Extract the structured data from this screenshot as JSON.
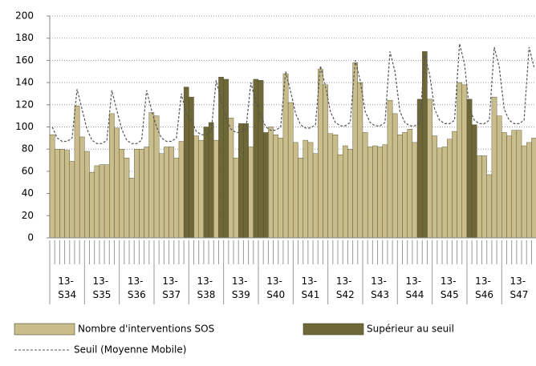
{
  "chart_data": {
    "type": "bar",
    "categories": [
      null,
      null,
      null,
      "13-\nS34",
      null,
      null,
      null,
      null,
      null,
      null,
      "13-\nS35",
      null,
      null,
      null,
      null,
      null,
      null,
      "13-\nS36",
      null,
      null,
      null,
      null,
      null,
      null,
      "13-\nS37",
      null,
      null,
      null,
      null,
      null,
      null,
      "13-\nS38",
      null,
      null,
      null,
      null,
      null,
      null,
      "13-\nS39",
      null,
      null,
      null,
      null,
      null,
      null,
      "13-\nS40",
      null,
      null,
      null,
      null,
      null,
      null,
      "13-\nS41",
      null,
      null,
      null,
      null,
      null,
      null,
      "13-\nS42",
      null,
      null,
      null,
      null,
      null,
      null,
      "13-\nS43",
      null,
      null,
      null,
      null,
      null,
      null,
      "13-\nS44",
      null,
      null,
      null,
      null,
      null,
      null,
      "13-\nS45",
      null,
      null,
      null,
      null,
      null,
      null,
      "13-\nS46",
      null,
      null,
      null,
      null,
      null,
      null,
      "13-\nS47",
      null,
      null,
      null
    ],
    "series": [
      {
        "name": "Nombre d'interventions SOS",
        "type": "bar",
        "color": "#c9bd8c",
        "values": [
          93,
          80,
          80,
          79,
          69,
          119,
          91,
          78,
          59,
          65,
          66,
          66,
          112,
          99,
          80,
          72,
          54,
          80,
          80,
          82,
          113,
          110,
          76,
          82,
          82,
          72,
          87,
          null,
          null,
          92,
          88,
          null,
          null,
          88,
          null,
          null,
          108,
          72,
          null,
          null,
          82,
          null,
          null,
          null,
          100,
          93,
          90,
          148,
          122,
          86,
          72,
          88,
          86,
          76,
          152,
          138,
          94,
          93,
          75,
          83,
          80,
          158,
          140,
          95,
          82,
          83,
          82,
          84,
          124,
          112,
          93,
          95,
          98,
          86,
          null,
          null,
          125,
          92,
          81,
          82,
          89,
          96,
          140,
          138,
          null,
          null,
          74,
          74,
          57,
          127,
          110,
          95,
          92,
          97,
          97,
          83,
          86,
          90
        ]
      },
      {
        "name": "Supérieur au seuil",
        "type": "bar",
        "color": "#6e6737",
        "values": [
          null,
          null,
          null,
          null,
          null,
          null,
          null,
          null,
          null,
          null,
          null,
          null,
          null,
          null,
          null,
          null,
          null,
          null,
          null,
          null,
          null,
          null,
          null,
          null,
          null,
          null,
          null,
          136,
          127,
          null,
          null,
          100,
          104,
          null,
          145,
          143,
          null,
          null,
          103,
          103,
          null,
          143,
          142,
          95,
          null,
          null,
          null,
          null,
          null,
          null,
          null,
          null,
          null,
          null,
          null,
          null,
          null,
          null,
          null,
          null,
          null,
          null,
          null,
          null,
          null,
          null,
          null,
          null,
          null,
          null,
          null,
          null,
          null,
          null,
          125,
          168,
          null,
          null,
          null,
          null,
          null,
          null,
          null,
          null,
          125,
          102,
          null,
          null,
          null,
          null,
          null,
          null,
          null,
          null,
          null,
          null,
          null,
          null
        ]
      },
      {
        "name": "Seuil (Moyenne Mobile)",
        "type": "line",
        "color": "#555555",
        "values": [
          100,
          90,
          87,
          87,
          90,
          134,
          116,
          98,
          88,
          85,
          85,
          88,
          133,
          115,
          98,
          88,
          85,
          85,
          88,
          133,
          115,
          100,
          90,
          87,
          87,
          90,
          130,
          112,
          106,
          96,
          93,
          93,
          96,
          142,
          124,
          108,
          98,
          95,
          95,
          98,
          140,
          122,
          110,
          100,
          97,
          97,
          100,
          150,
          132,
          112,
          102,
          99,
          99,
          102,
          155,
          137,
          114,
          104,
          101,
          101,
          104,
          160,
          142,
          114,
          104,
          101,
          101,
          104,
          168,
          150,
          114,
          104,
          101,
          101,
          104,
          165,
          147,
          116,
          106,
          103,
          103,
          106,
          175,
          157,
          116,
          106,
          103,
          103,
          106,
          172,
          154,
          116,
          106,
          103,
          103,
          106,
          172,
          154
        ]
      }
    ],
    "ylim": [
      0,
      200
    ],
    "yticks": [
      0,
      20,
      40,
      60,
      80,
      100,
      120,
      140,
      160,
      180,
      200
    ],
    "grid": true
  }
}
